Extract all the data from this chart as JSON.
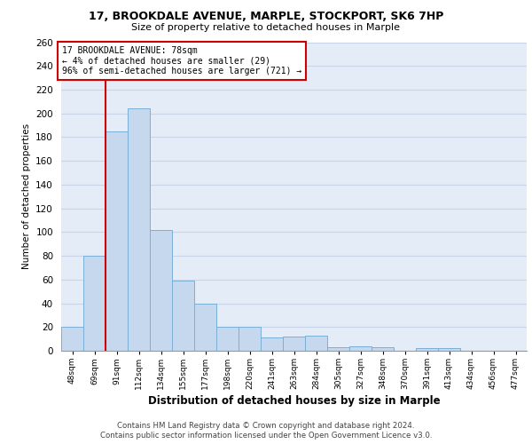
{
  "title1": "17, BROOKDALE AVENUE, MARPLE, STOCKPORT, SK6 7HP",
  "title2": "Size of property relative to detached houses in Marple",
  "xlabel": "Distribution of detached houses by size in Marple",
  "ylabel": "Number of detached properties",
  "categories": [
    "48sqm",
    "69sqm",
    "91sqm",
    "112sqm",
    "134sqm",
    "155sqm",
    "177sqm",
    "198sqm",
    "220sqm",
    "241sqm",
    "263sqm",
    "284sqm",
    "305sqm",
    "327sqm",
    "348sqm",
    "370sqm",
    "391sqm",
    "413sqm",
    "434sqm",
    "456sqm",
    "477sqm"
  ],
  "values": [
    20,
    80,
    185,
    204,
    102,
    59,
    40,
    20,
    20,
    11,
    12,
    13,
    3,
    4,
    3,
    0,
    2,
    2,
    0,
    0,
    0
  ],
  "bar_color": "#c5d8ee",
  "bar_edge_color": "#7aafd4",
  "annotation_text": "17 BROOKDALE AVENUE: 78sqm\n← 4% of detached houses are smaller (29)\n96% of semi-detached houses are larger (721) →",
  "annotation_box_color": "white",
  "annotation_box_edge_color": "#cc0000",
  "red_line_color": "#cc0000",
  "footnote1": "Contains HM Land Registry data © Crown copyright and database right 2024.",
  "footnote2": "Contains public sector information licensed under the Open Government Licence v3.0.",
  "ylim": [
    0,
    260
  ],
  "yticks": [
    0,
    20,
    40,
    60,
    80,
    100,
    120,
    140,
    160,
    180,
    200,
    220,
    240,
    260
  ],
  "grid_color": "#c8d4e8",
  "bg_color": "#e4ecf7"
}
